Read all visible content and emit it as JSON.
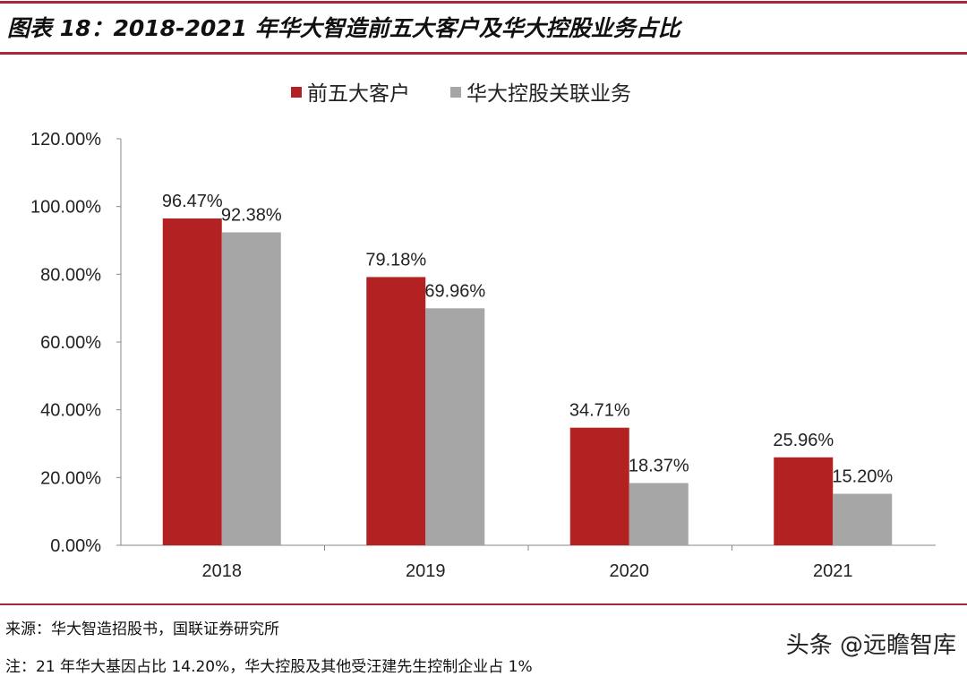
{
  "title": "图表 18：2018-2021 年华大智造前五大客户及华大控股业务占比",
  "source": "来源：华大智造招股书，国联证券研究所",
  "note": "注：21 年华大基因占比 14.20%，华大控股及其他受汪建先生控制企业占 1%",
  "watermark": "头条 @远瞻智库",
  "chart_data": {
    "type": "bar",
    "categories": [
      "2018",
      "2019",
      "2020",
      "2021"
    ],
    "series": [
      {
        "name": "前五大客户",
        "values": [
          96.47,
          79.18,
          34.71,
          25.96
        ],
        "labels": [
          "96.47%",
          "79.18%",
          "34.71%",
          "25.96%"
        ],
        "color": "#b22222"
      },
      {
        "name": "华大控股关联业务",
        "values": [
          92.38,
          69.96,
          18.37,
          15.2
        ],
        "labels": [
          "92.38%",
          "69.96%",
          "18.37%",
          "15.20%"
        ],
        "color": "#a6a6a6"
      }
    ],
    "yticks": [
      "0.00%",
      "20.00%",
      "40.00%",
      "60.00%",
      "80.00%",
      "100.00%",
      "120.00%"
    ],
    "ylim": [
      0,
      120
    ],
    "grid": false,
    "legend": "top-center"
  }
}
